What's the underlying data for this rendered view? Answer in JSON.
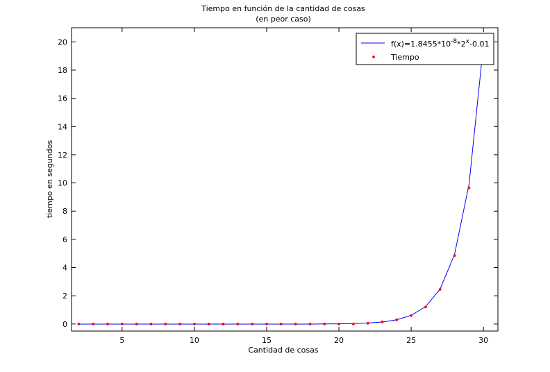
{
  "chart_data": {
    "type": "line",
    "title": "Tiempo en función de la cantidad de cosas",
    "subtitle": "(en peor caso)",
    "xlabel": "Cantidad de cosas",
    "ylabel": "tiempo en segundos",
    "xlim": [
      1.5,
      31
    ],
    "ylim": [
      -0.5,
      21
    ],
    "xticks": [
      5,
      10,
      15,
      20,
      25,
      30
    ],
    "yticks": [
      0,
      2,
      4,
      6,
      8,
      10,
      12,
      14,
      16,
      18,
      20
    ],
    "grid": false,
    "legend_position": "top-right",
    "series": [
      {
        "name": "f(x)=1.8455*10^-8*2^x-0.01",
        "legend": {
          "base": "f(x)=1.8455*10",
          "exp1": "-8",
          "mid": "*2",
          "exp2": "x",
          "tail": "-0.01"
        },
        "style": "line",
        "color": "#0000ff",
        "x": [
          2,
          3,
          4,
          5,
          6,
          7,
          8,
          9,
          10,
          11,
          12,
          13,
          14,
          15,
          16,
          17,
          18,
          19,
          20,
          21,
          22,
          23,
          24,
          25,
          26,
          27,
          28,
          29,
          30
        ],
        "y": [
          -0.01,
          -0.01,
          -0.01,
          -0.01,
          -0.01,
          -0.01,
          -0.01,
          -0.01,
          -0.01,
          -0.01,
          -0.01,
          -0.01,
          -0.01,
          -0.01,
          -0.01,
          -0.01,
          -0.01,
          0.0,
          0.01,
          0.03,
          0.07,
          0.14,
          0.3,
          0.61,
          1.23,
          2.47,
          4.94,
          9.9,
          19.8
        ]
      },
      {
        "name": "Tiempo",
        "style": "markers",
        "color": "#ff0000",
        "x": [
          2,
          3,
          4,
          5,
          6,
          7,
          8,
          9,
          10,
          11,
          12,
          13,
          14,
          15,
          16,
          17,
          18,
          19,
          20,
          21,
          22,
          23,
          24,
          25,
          26,
          27,
          28,
          29
        ],
        "y": [
          0,
          0,
          0,
          0,
          0,
          0,
          0,
          0,
          0,
          0,
          0,
          0,
          0,
          0,
          0,
          0,
          0,
          0,
          0,
          0,
          0.05,
          0.15,
          0.3,
          0.6,
          1.2,
          2.45,
          4.85,
          9.65
        ]
      }
    ]
  }
}
